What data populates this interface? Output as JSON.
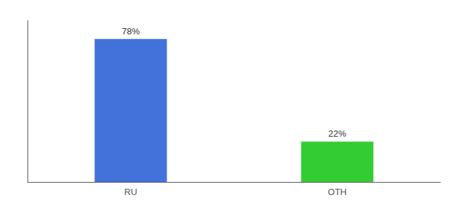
{
  "chart_data": {
    "type": "bar",
    "categories": [
      "RU",
      "OTH"
    ],
    "values": [
      78,
      22
    ],
    "value_labels": [
      "78%",
      "22%"
    ],
    "colors": [
      "#4472DB",
      "#33CC33"
    ],
    "ylim": [
      0,
      88
    ],
    "grid": false,
    "tick_labels": "x",
    "data_labels": true
  }
}
